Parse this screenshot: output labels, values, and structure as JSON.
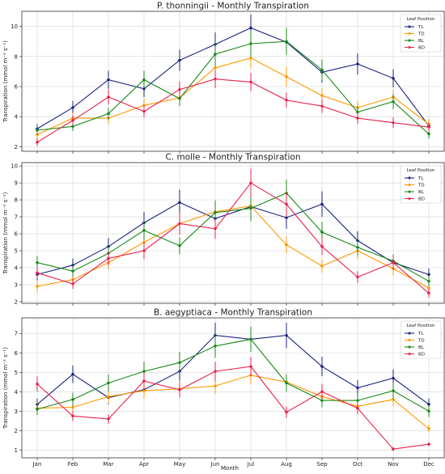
{
  "x_label": "Month",
  "chart_data": [
    {
      "type": "line",
      "title": "P. thonningii - Monthly Transpiration",
      "ylabel": "Transpiration (mmol m⁻² s⁻¹)",
      "ylim": [
        1.7,
        11.0
      ],
      "yticks": [
        2,
        4,
        6,
        8,
        10
      ],
      "categories": [
        "Jan",
        "Feb",
        "Mar",
        "Apr",
        "May",
        "Jun",
        "Jul",
        "Aug",
        "Sep",
        "Oct",
        "Nov",
        "Dec"
      ],
      "grid": true,
      "legend": {
        "title": "Leaf Position",
        "placement": "top-right"
      },
      "series": [
        {
          "name": "TL",
          "color": "#1a237e",
          "values": [
            3.2,
            4.6,
            6.45,
            5.85,
            7.75,
            8.8,
            9.9,
            8.95,
            6.95,
            7.5,
            6.55,
            3.4
          ],
          "errors": [
            0.3,
            0.45,
            0.6,
            0.55,
            0.7,
            0.8,
            0.9,
            0.8,
            0.7,
            0.7,
            0.6,
            0.35
          ]
        },
        {
          "name": "TD",
          "color": "#ff9800",
          "values": [
            2.8,
            3.9,
            3.9,
            4.75,
            5.25,
            7.25,
            7.9,
            6.65,
            5.4,
            4.6,
            5.3,
            3.5
          ],
          "errors": [
            0.3,
            0.35,
            0.4,
            0.45,
            0.5,
            0.7,
            0.7,
            0.65,
            0.5,
            0.45,
            0.5,
            0.35
          ]
        },
        {
          "name": "BL",
          "color": "#188a18",
          "values": [
            3.1,
            3.35,
            4.2,
            6.45,
            5.2,
            8.15,
            8.85,
            9.0,
            7.1,
            4.3,
            5.0,
            2.85
          ],
          "errors": [
            0.3,
            0.3,
            0.4,
            0.6,
            0.5,
            0.8,
            0.85,
            0.9,
            0.7,
            0.4,
            0.5,
            0.3
          ]
        },
        {
          "name": "BD",
          "color": "#e8234a",
          "values": [
            2.3,
            3.75,
            5.3,
            4.35,
            5.8,
            6.5,
            6.3,
            5.1,
            4.7,
            3.9,
            3.6,
            3.3
          ],
          "errors": [
            0.25,
            0.35,
            0.5,
            0.4,
            0.55,
            0.6,
            0.6,
            0.5,
            0.45,
            0.4,
            0.35,
            0.3
          ]
        }
      ]
    },
    {
      "type": "line",
      "title": "C. molle - Monthly Transpiration",
      "ylabel": "Transpiration (mmol m⁻² s⁻¹)",
      "ylim": [
        1.9,
        10.2
      ],
      "yticks": [
        2,
        3,
        4,
        5,
        6,
        7,
        8,
        9,
        10
      ],
      "categories": [
        "Jan",
        "Feb",
        "Mar",
        "Apr",
        "May",
        "Jun",
        "Jul",
        "Aug",
        "Sep",
        "Oct",
        "Nov",
        "Dec"
      ],
      "grid": true,
      "legend": {
        "title": "Leaf Position",
        "placement": "top-right"
      },
      "series": [
        {
          "name": "TL",
          "color": "#1a237e",
          "values": [
            3.6,
            4.15,
            5.25,
            6.65,
            7.85,
            6.9,
            7.6,
            6.95,
            7.75,
            5.6,
            4.3,
            3.6
          ],
          "errors": [
            0.35,
            0.4,
            0.5,
            0.65,
            0.75,
            0.7,
            0.75,
            0.65,
            0.75,
            0.55,
            0.4,
            0.35
          ]
        },
        {
          "name": "TD",
          "color": "#ff9800",
          "values": [
            2.9,
            3.3,
            4.3,
            5.5,
            6.6,
            7.3,
            7.65,
            5.35,
            4.1,
            5.0,
            3.95,
            2.8
          ],
          "errors": [
            0.3,
            0.3,
            0.4,
            0.55,
            0.65,
            0.7,
            0.75,
            0.5,
            0.4,
            0.5,
            0.4,
            0.3
          ]
        },
        {
          "name": "BL",
          "color": "#188a18",
          "values": [
            4.3,
            3.8,
            4.85,
            6.2,
            5.3,
            7.25,
            7.5,
            8.4,
            6.1,
            5.2,
            4.4,
            3.2
          ],
          "errors": [
            0.4,
            0.35,
            0.45,
            0.6,
            0.5,
            0.7,
            0.75,
            0.8,
            0.6,
            0.5,
            0.4,
            0.3
          ]
        },
        {
          "name": "BD",
          "color": "#e8234a",
          "values": [
            3.7,
            3.05,
            4.55,
            5.0,
            6.6,
            6.3,
            9.0,
            7.75,
            5.25,
            3.45,
            4.3,
            2.5
          ],
          "errors": [
            0.35,
            0.3,
            0.45,
            0.5,
            0.65,
            0.6,
            0.85,
            0.75,
            0.5,
            0.35,
            0.4,
            0.25
          ]
        }
      ]
    },
    {
      "type": "line",
      "title": "B. aegyptiaca - Monthly Transpiration",
      "ylabel": "Transpiration (mmol m⁻² s⁻¹)",
      "ylim": [
        0.6,
        7.8
      ],
      "yticks": [
        1,
        2,
        3,
        4,
        5,
        6,
        7
      ],
      "categories": [
        "Jan",
        "Feb",
        "Mar",
        "Apr",
        "May",
        "Jun",
        "Jul",
        "Aug",
        "Sep",
        "Oct",
        "Nov",
        "Dec"
      ],
      "grid": true,
      "legend": {
        "title": "Leaf Position",
        "placement": "top-right"
      },
      "series": [
        {
          "name": "TL",
          "color": "#1a237e",
          "values": [
            3.35,
            4.9,
            3.7,
            4.1,
            5.05,
            6.9,
            6.7,
            6.9,
            5.3,
            4.2,
            4.7,
            3.35
          ],
          "errors": [
            0.3,
            0.45,
            0.35,
            0.4,
            0.5,
            0.65,
            0.65,
            0.65,
            0.5,
            0.4,
            0.45,
            0.3
          ]
        },
        {
          "name": "TD",
          "color": "#ff9800",
          "values": [
            3.15,
            3.2,
            3.75,
            4.05,
            4.15,
            4.3,
            4.85,
            4.5,
            3.75,
            3.25,
            3.6,
            2.1
          ],
          "errors": [
            0.3,
            0.3,
            0.35,
            0.4,
            0.4,
            0.4,
            0.45,
            0.4,
            0.35,
            0.3,
            0.35,
            0.2
          ]
        },
        {
          "name": "BL",
          "color": "#188a18",
          "values": [
            3.1,
            3.6,
            4.45,
            5.05,
            5.5,
            6.35,
            6.7,
            4.45,
            3.55,
            3.55,
            4.05,
            3.0
          ],
          "errors": [
            0.3,
            0.35,
            0.45,
            0.5,
            0.55,
            0.6,
            0.65,
            0.45,
            0.35,
            0.35,
            0.4,
            0.3
          ]
        },
        {
          "name": "BD",
          "color": "#e8234a",
          "values": [
            4.4,
            2.75,
            2.6,
            4.55,
            4.1,
            5.05,
            5.3,
            2.95,
            4.0,
            3.15,
            1.05,
            1.3
          ],
          "errors": [
            0.4,
            0.25,
            0.25,
            0.45,
            0.4,
            0.5,
            0.5,
            0.3,
            0.4,
            0.3,
            0.1,
            0.1
          ]
        }
      ]
    }
  ]
}
